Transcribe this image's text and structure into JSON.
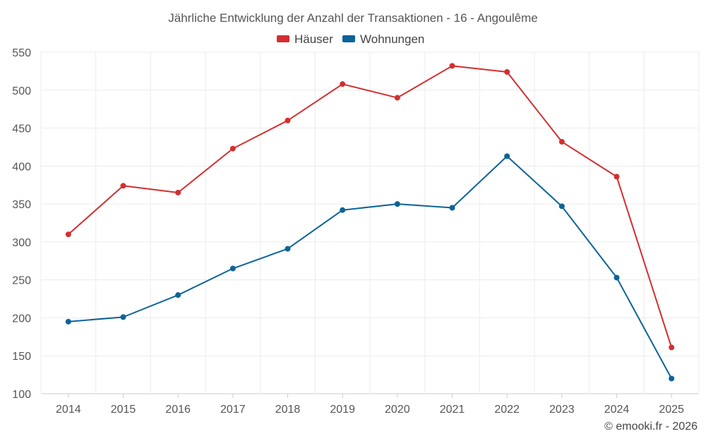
{
  "chart_data": {
    "type": "line",
    "title": "Jährliche Entwicklung der Anzahl der Transaktionen - 16 - Angoulême",
    "categories": [
      "2014",
      "2015",
      "2016",
      "2017",
      "2018",
      "2019",
      "2020",
      "2021",
      "2022",
      "2023",
      "2024",
      "2025"
    ],
    "series": [
      {
        "name": "Häuser",
        "color": "#d32f2f",
        "values": [
          310,
          374,
          365,
          423,
          460,
          508,
          490,
          532,
          524,
          432,
          386,
          161
        ]
      },
      {
        "name": "Wohnungen",
        "color": "#0c6398",
        "values": [
          195,
          201,
          230,
          265,
          291,
          342,
          350,
          345,
          413,
          347,
          253,
          120
        ]
      }
    ],
    "ylim": [
      100,
      550
    ],
    "yticks": [
      100,
      150,
      200,
      250,
      300,
      350,
      400,
      450,
      500,
      550
    ],
    "xlabel": "",
    "ylabel": "",
    "grid": true,
    "legend_position": "top-center"
  },
  "footer": {
    "copyright": "© emooki.fr - 2026"
  }
}
